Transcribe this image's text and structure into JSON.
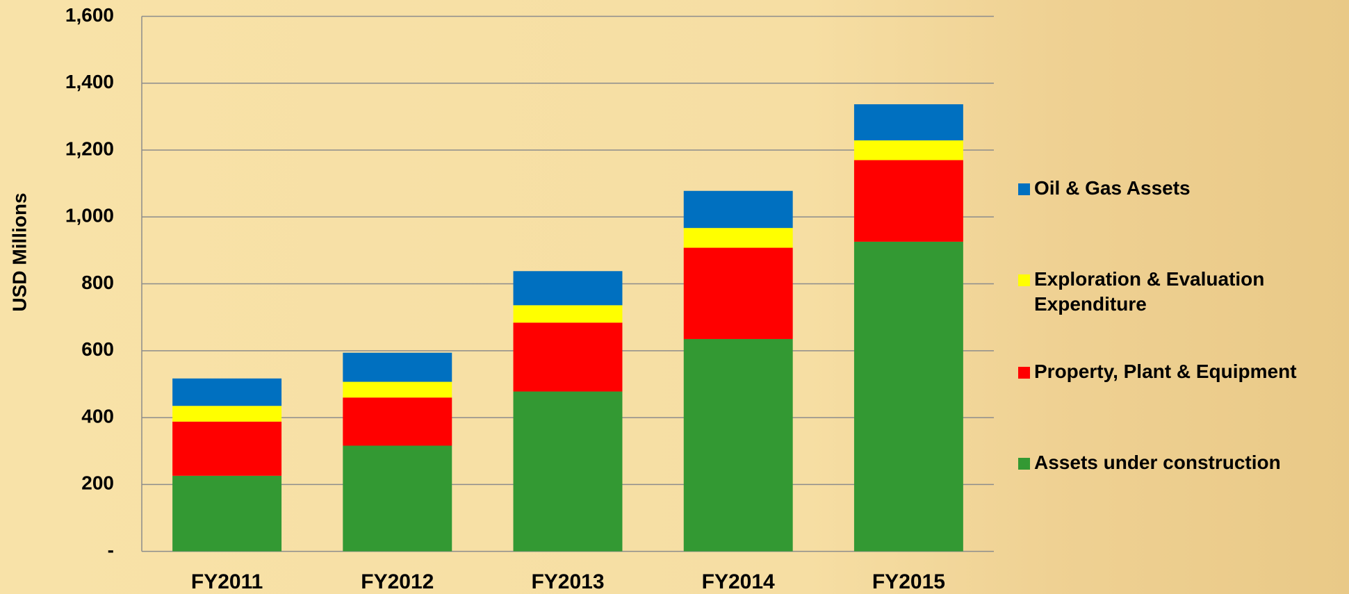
{
  "chart_data": {
    "type": "stacked_bar",
    "y_label": "USD Millions",
    "categories": [
      "FY2011",
      "FY2012",
      "FY2013",
      "FY2014",
      "FY2015"
    ],
    "series": [
      {
        "name": "Assets under construction",
        "color": "#339933",
        "values": [
          226,
          316,
          478,
          635,
          926
        ]
      },
      {
        "name": "Property, Plant & Equipment",
        "color": "#ff0000",
        "values": [
          162,
          144,
          206,
          273,
          244
        ]
      },
      {
        "name": "Exploration & Evaluation Expenditure",
        "color": "#ffff00",
        "values": [
          47,
          47,
          52,
          59,
          59
        ]
      },
      {
        "name": "Oil & Gas Assets",
        "color": "#0070c0",
        "values": [
          82,
          87,
          102,
          111,
          108
        ]
      }
    ],
    "ylim": [
      0,
      1600
    ],
    "yticks": [
      {
        "value": 0,
        "label": "-"
      },
      200,
      400,
      600,
      800,
      {
        "value": 1000,
        "label": "1,000"
      },
      {
        "value": 1200,
        "label": "1,200"
      },
      {
        "value": 1400,
        "label": "1,400"
      },
      {
        "value": 1600,
        "label": "1,600"
      }
    ],
    "grid": true,
    "legend": "right"
  }
}
